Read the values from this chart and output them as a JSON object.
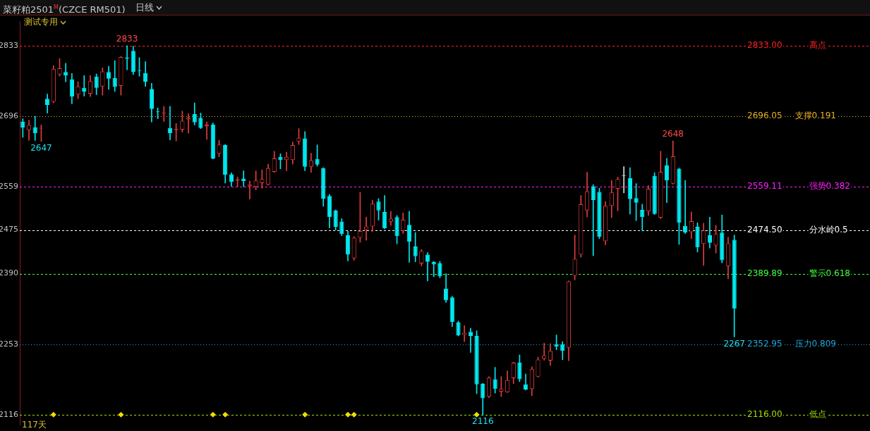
{
  "chart_data": {
    "type": "candlestick",
    "title": "菜籽粕2501$^{M}$(CZCE RM501)",
    "subtitle": "日线",
    "categories": [
      null,
      null,
      null,
      null,
      null,
      null,
      null,
      null,
      null,
      null,
      null,
      null,
      null,
      null,
      null,
      null,
      null,
      null,
      null,
      null,
      null,
      null,
      null,
      null,
      null,
      null,
      null,
      null,
      null,
      null,
      null,
      null,
      null,
      null,
      null,
      null,
      null,
      null,
      null,
      null,
      null,
      null,
      null,
      null,
      null,
      null,
      null,
      null,
      null,
      null,
      null,
      null,
      null,
      null,
      null,
      null,
      null,
      null,
      null,
      null,
      null,
      null,
      null,
      null,
      null,
      null,
      null,
      null,
      null,
      null,
      null,
      null,
      null,
      null,
      null,
      null,
      null,
      null,
      null,
      null,
      null,
      null,
      null,
      null,
      null,
      null,
      null,
      null,
      null,
      null,
      null,
      null,
      null,
      null,
      null,
      null,
      null,
      null,
      null,
      null,
      null,
      null,
      null,
      null,
      null,
      null,
      null,
      null,
      null,
      null,
      null,
      null,
      null,
      null,
      null,
      null,
      null
    ],
    "ohlc": [
      [
        2685,
        2691,
        2655,
        2674
      ],
      [
        2669,
        2688,
        2649,
        2679
      ],
      [
        2675,
        2696,
        2649,
        2663
      ],
      [
        2672,
        2679,
        2647,
        2673
      ],
      [
        2730,
        2739,
        2702,
        2718
      ],
      [
        2724,
        2794,
        2722,
        2788
      ],
      [
        2777,
        2808,
        2774,
        2789
      ],
      [
        2782,
        2799,
        2763,
        2775
      ],
      [
        2768,
        2779,
        2720,
        2734
      ],
      [
        2738,
        2763,
        2730,
        2754
      ],
      [
        2751,
        2775,
        2735,
        2744
      ],
      [
        2740,
        2775,
        2734,
        2764
      ],
      [
        2773,
        2778,
        2738,
        2751
      ],
      [
        2754,
        2790,
        2737,
        2783
      ],
      [
        2782,
        2793,
        2748,
        2769
      ],
      [
        2770,
        2804,
        2744,
        2753
      ],
      [
        2755,
        2812,
        2737,
        2811
      ],
      [
        2810,
        2833,
        2786,
        2808
      ],
      [
        2823,
        2832,
        2777,
        2782
      ],
      [
        2785,
        2810,
        2774,
        2784
      ],
      [
        2780,
        2802,
        2754,
        2763
      ],
      [
        2749,
        2760,
        2685,
        2710
      ],
      [
        2705,
        2712,
        2691,
        2704
      ],
      [
        2702,
        2715,
        2686,
        2703
      ],
      [
        2673,
        2715,
        2650,
        2663
      ],
      [
        2669,
        2682,
        2648,
        2671
      ],
      [
        2670,
        2706,
        2665,
        2687
      ],
      [
        2690,
        2701,
        2663,
        2693
      ],
      [
        2700,
        2722,
        2679,
        2684
      ],
      [
        2693,
        2702,
        2672,
        2673
      ],
      [
        2677,
        2685,
        2651,
        2680
      ],
      [
        2680,
        2683,
        2613,
        2614
      ],
      [
        2623,
        2649,
        2617,
        2641
      ],
      [
        2640,
        2641,
        2566,
        2582
      ],
      [
        2583,
        2586,
        2560,
        2568
      ],
      [
        2571,
        2578,
        2559,
        2573
      ],
      [
        2575,
        2590,
        2559,
        2570
      ],
      [
        2560,
        2570,
        2535,
        2563
      ],
      [
        2559,
        2590,
        2553,
        2571
      ],
      [
        2566,
        2592,
        2556,
        2574
      ],
      [
        2563,
        2603,
        2562,
        2595
      ],
      [
        2588,
        2628,
        2587,
        2614
      ],
      [
        2617,
        2623,
        2594,
        2611
      ],
      [
        2611,
        2626,
        2590,
        2617
      ],
      [
        2611,
        2646,
        2603,
        2640
      ],
      [
        2647,
        2672,
        2641,
        2654
      ],
      [
        2653,
        2666,
        2590,
        2598
      ],
      [
        2598,
        2624,
        2587,
        2610
      ],
      [
        2613,
        2640,
        2599,
        2602
      ],
      [
        2595,
        2596,
        2521,
        2536
      ],
      [
        2541,
        2544,
        2479,
        2500
      ],
      [
        2513,
        2514,
        2475,
        2481
      ],
      [
        2491,
        2497,
        2464,
        2467
      ],
      [
        2465,
        2473,
        2415,
        2427
      ],
      [
        2420,
        2462,
        2416,
        2460
      ],
      [
        2460,
        2548,
        2451,
        2473
      ],
      [
        2475,
        2500,
        2455,
        2482
      ],
      [
        2482,
        2533,
        2472,
        2526
      ],
      [
        2530,
        2536,
        2494,
        2513
      ],
      [
        2510,
        2542,
        2477,
        2478
      ],
      [
        2491,
        2511,
        2484,
        2497
      ],
      [
        2500,
        2503,
        2448,
        2463
      ],
      [
        2473,
        2508,
        2468,
        2495
      ],
      [
        2485,
        2511,
        2412,
        2452
      ],
      [
        2443,
        2470,
        2413,
        2424
      ],
      [
        2410,
        2437,
        2405,
        2434
      ],
      [
        2427,
        2431,
        2376,
        2413
      ],
      [
        2413,
        2414,
        2384,
        2408
      ],
      [
        2410,
        2414,
        2382,
        2385
      ],
      [
        2361,
        2390,
        2334,
        2338
      ],
      [
        2344,
        2346,
        2287,
        2296
      ],
      [
        2295,
        2298,
        2269,
        2270
      ],
      [
        2271,
        2289,
        2258,
        2275
      ],
      [
        2277,
        2284,
        2237,
        2269
      ],
      [
        2269,
        2279,
        2157,
        2175
      ],
      [
        2176,
        2177,
        2116,
        2148
      ],
      [
        2151,
        2190,
        2149,
        2188
      ],
      [
        2185,
        2208,
        2158,
        2166
      ],
      [
        2161,
        2190,
        2151,
        2166
      ],
      [
        2160,
        2201,
        2159,
        2183
      ],
      [
        2187,
        2218,
        2176,
        2217
      ],
      [
        2217,
        2232,
        2180,
        2185
      ],
      [
        2175,
        2195,
        2164,
        2165
      ],
      [
        2166,
        2209,
        2153,
        2205
      ],
      [
        2190,
        2228,
        2189,
        2223
      ],
      [
        2225,
        2255,
        2222,
        2231
      ],
      [
        2221,
        2254,
        2212,
        2240
      ],
      [
        2253,
        2271,
        2242,
        2248
      ],
      [
        2253,
        2258,
        2223,
        2240
      ],
      [
        2246,
        2376,
        2221,
        2375
      ],
      [
        2386,
        2465,
        2378,
        2419
      ],
      [
        2427,
        2542,
        2422,
        2525
      ],
      [
        2513,
        2587,
        2500,
        2550
      ],
      [
        2560,
        2563,
        2425,
        2533
      ],
      [
        2549,
        2556,
        2458,
        2462
      ],
      [
        2453,
        2530,
        2446,
        2522
      ],
      [
        2522,
        2571,
        2499,
        2548
      ],
      [
        2555,
        2578,
        2512,
        2574
      ],
      [
        2580,
        2598,
        2547,
        2580
      ],
      [
        2576,
        2596,
        2506,
        2535
      ],
      [
        2537,
        2565,
        2493,
        2528
      ],
      [
        2514,
        2525,
        2473,
        2500
      ],
      [
        2511,
        2561,
        2503,
        2555
      ],
      [
        2580,
        2586,
        2505,
        2506
      ],
      [
        2499,
        2628,
        2497,
        2588
      ],
      [
        2601,
        2614,
        2528,
        2571
      ],
      [
        2565,
        2648,
        2564,
        2618
      ],
      [
        2594,
        2595,
        2447,
        2489
      ],
      [
        2483,
        2571,
        2468,
        2470
      ],
      [
        2471,
        2510,
        2458,
        2492
      ],
      [
        2481,
        2489,
        2432,
        2441
      ],
      [
        2448,
        2488,
        2406,
        2474
      ],
      [
        2465,
        2500,
        2440,
        2450
      ],
      [
        2445,
        2484,
        2430,
        2467
      ],
      [
        2470,
        2504,
        2411,
        2416
      ],
      [
        2405,
        2461,
        2380,
        2449
      ],
      [
        2456,
        2465,
        2267,
        2322
      ]
    ],
    "colors": [
      "#00e8f0",
      "#e03c3c",
      "#00e8f0",
      "#e03c3c",
      "#00e8f0",
      "#e03c3c",
      "#e03c3c",
      "#00e8f0",
      "#00e8f0",
      "#e03c3c",
      "#00e8f0",
      "#e03c3c",
      "#00e8f0",
      "#e03c3c",
      "#00e8f0",
      "#00e8f0",
      "#e03c3c",
      "#00e8f0",
      "#00e8f0",
      "#00e8f0",
      "#00e8f0",
      "#00e8f0",
      "#00e8f0",
      "#e03c3c",
      "#00e8f0",
      "#e03c3c",
      "#e03c3c",
      "#e03c3c",
      "#00e8f0",
      "#00e8f0",
      "#e03c3c",
      "#00e8f0",
      "#e03c3c",
      "#00e8f0",
      "#00e8f0",
      "#e03c3c",
      "#00e8f0",
      "#e03c3c",
      "#e03c3c",
      "#e03c3c",
      "#e03c3c",
      "#e03c3c",
      "#00e8f0",
      "#e03c3c",
      "#e03c3c",
      "#e03c3c",
      "#00e8f0",
      "#e03c3c",
      "#00e8f0",
      "#00e8f0",
      "#00e8f0",
      "#00e8f0",
      "#00e8f0",
      "#00e8f0",
      "#e03c3c",
      "#e03c3c",
      "#e03c3c",
      "#e03c3c",
      "#00e8f0",
      "#00e8f0",
      "#e03c3c",
      "#00e8f0",
      "#e03c3c",
      "#00e8f0",
      "#00e8f0",
      "#e03c3c",
      "#00e8f0",
      "#00e8f0",
      "#00e8f0",
      "#00e8f0",
      "#00e8f0",
      "#00e8f0",
      "#e03c3c",
      "#00e8f0",
      "#00e8f0",
      "#00e8f0",
      "#e03c3c",
      "#00e8f0",
      "#e03c3c",
      "#e03c3c",
      "#e03c3c",
      "#00e8f0",
      "#00e8f0",
      "#e03c3c",
      "#e03c3c",
      "#e03c3c",
      "#e03c3c",
      "#00e8f0",
      "#00e8f0",
      "#e03c3c",
      "#e03c3c",
      "#e03c3c",
      "#e03c3c",
      "#00e8f0",
      "#00e8f0",
      "#e03c3c",
      "#e03c3c",
      "#e03c3c",
      "#dddddd",
      "#00e8f0",
      "#00e8f0",
      "#00e8f0",
      "#e03c3c",
      "#00e8f0",
      "#e03c3c",
      "#00e8f0",
      "#e03c3c",
      "#00e8f0",
      "#00e8f0",
      "#e03c3c",
      "#00e8f0",
      "#e03c3c",
      "#00e8f0",
      "#e03c3c",
      "#00e8f0",
      "#e03c3c",
      "#00e8f0"
    ],
    "series": [
      {
        "type": "scatter",
        "marker": "diamond",
        "color": "#f0e000",
        "values": [
          null,
          null,
          null,
          null,
          null,
          2116,
          null,
          null,
          null,
          null,
          null,
          null,
          null,
          null,
          null,
          null,
          2116,
          null,
          null,
          null,
          null,
          null,
          null,
          null,
          null,
          null,
          null,
          null,
          null,
          null,
          null,
          2116,
          null,
          2116,
          null,
          null,
          null,
          null,
          null,
          null,
          null,
          null,
          null,
          null,
          null,
          null,
          2116,
          null,
          null,
          null,
          null,
          null,
          null,
          2116,
          2116,
          null,
          null,
          null,
          null,
          null,
          null,
          null,
          null,
          null,
          null,
          null,
          null,
          null,
          null,
          null,
          null,
          null,
          null,
          null,
          2116,
          null,
          null,
          null,
          null,
          null,
          null,
          null,
          null,
          null,
          null,
          null,
          null,
          null,
          null,
          null,
          null,
          null,
          null,
          null,
          null,
          null,
          null,
          null,
          null,
          null,
          null,
          null,
          null,
          null,
          null,
          null,
          null,
          null,
          null,
          null,
          null,
          null,
          null,
          null,
          null,
          null,
          null
        ]
      }
    ],
    "ylim": [
      2096,
      2880
    ],
    "yticks": [
      2116,
      2253,
      2390,
      2475,
      2559,
      2696,
      2833
    ],
    "legend": false,
    "tick_labels": "y",
    "ref_lines": [
      {
        "axis": "y",
        "value": 2833,
        "label": "高点",
        "color": "#ff2020",
        "line_style": "dashed"
      },
      {
        "axis": "y",
        "value": 2696.05,
        "label": "支撑0.191",
        "color": "#e6b422",
        "line_style": "dotted"
      },
      {
        "axis": "y",
        "value": 2559.11,
        "label": "强势0.382",
        "color": "#ff20ff",
        "line_style": "dashed"
      },
      {
        "axis": "y",
        "value": 2474.5,
        "label": "分水岭0.5",
        "color": "#ffffff",
        "line_style": "dashed"
      },
      {
        "axis": "y",
        "value": 2389.89,
        "label": "警示0.618",
        "color": "#40ff40",
        "line_style": "dashed"
      },
      {
        "axis": "y",
        "value": 2252.95,
        "label": "压力0.809",
        "color": "#20a8e0",
        "line_style": "dotted"
      },
      {
        "axis": "y",
        "value": 2116,
        "label": "低点",
        "color": "#a0e000",
        "line_style": "dashed"
      }
    ],
    "annotations": [
      "测试专用",
      "117天",
      "2833.00",
      "2696.05",
      "2559.11",
      "2474.50",
      "2389.89",
      "2352.95",
      "2116.00",
      {
        "text": "2833",
        "y": 2833
      },
      {
        "text": "2647",
        "y": 2647
      },
      {
        "text": "2648",
        "y": 2648
      },
      {
        "text": "2267",
        "y": 2267
      },
      {
        "text": "2116",
        "y": 2116
      }
    ]
  }
}
